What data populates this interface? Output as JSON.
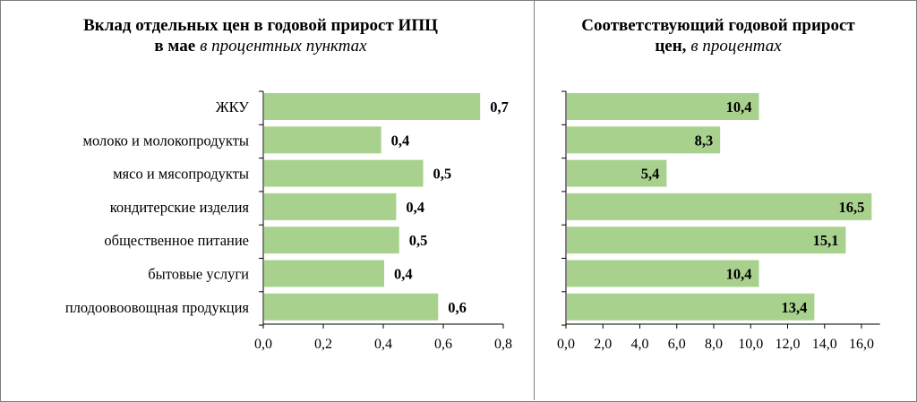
{
  "colors": {
    "bar": "#a9d18e",
    "axis": "#000000",
    "frame": "#7f7f7f"
  },
  "chart_data": [
    {
      "type": "bar",
      "orientation": "horizontal",
      "title": "Вклад отдельных цен в годовой прирост ИПЦ",
      "title_line2_bold": "в мае",
      "title_line2_italic": "в процентных пунктах",
      "categories": [
        "ЖКУ",
        "молоко и молокопродукты",
        "мясо и мясопродукты",
        "кондитерские изделия",
        "общественное питание",
        "бытовые услуги",
        "плодоовоовощная продукция"
      ],
      "values": [
        0.72,
        0.39,
        0.53,
        0.44,
        0.45,
        0.4,
        0.58
      ],
      "value_labels": [
        "0,7",
        "0,4",
        "0,5",
        "0,4",
        "0,5",
        "0,4",
        "0,6"
      ],
      "xlim": [
        0,
        0.8
      ],
      "x_ticks": [
        0,
        0.2,
        0.4,
        0.6,
        0.8
      ],
      "x_tick_labels": [
        "0,0",
        "0,2",
        "0,4",
        "0,6",
        "0,8"
      ],
      "grid": false,
      "label_position": "outside-end"
    },
    {
      "type": "bar",
      "orientation": "horizontal",
      "title": "Соответствующий годовой прирост",
      "title_line2_bold": "цен,",
      "title_line2_italic": "в процентах",
      "categories": [
        "ЖКУ",
        "молоко и молокопродукты",
        "мясо и мясопродукты",
        "кондитерские изделия",
        "общественное питание",
        "бытовые услуги",
        "плодоовоовощная продукция"
      ],
      "values": [
        10.4,
        8.3,
        5.4,
        16.5,
        15.1,
        10.4,
        13.4
      ],
      "value_labels": [
        "10,4",
        "8,3",
        "5,4",
        "16,5",
        "15,1",
        "10,4",
        "13,4"
      ],
      "xlim": [
        0,
        17
      ],
      "x_ticks": [
        0,
        2,
        4,
        6,
        8,
        10,
        12,
        14,
        16
      ],
      "x_tick_labels": [
        "0,0",
        "2,0",
        "4,0",
        "6,0",
        "8,0",
        "10,0",
        "12,0",
        "14,0",
        "16,0"
      ],
      "grid": false,
      "label_position": "inside-end"
    }
  ]
}
